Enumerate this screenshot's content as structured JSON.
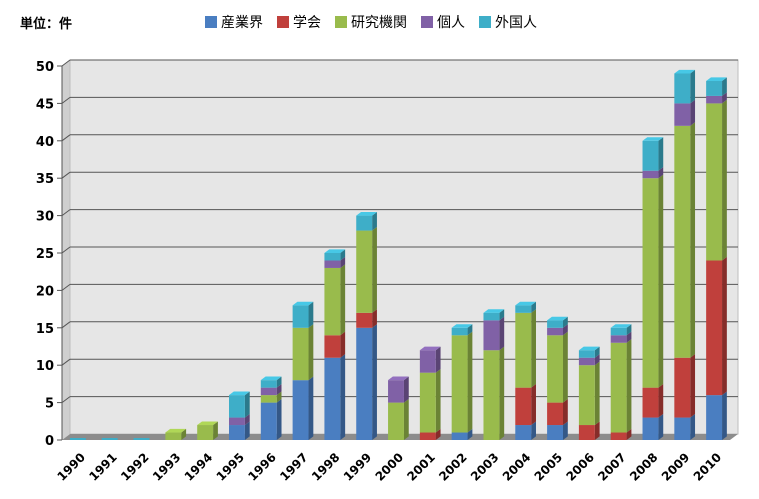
{
  "chart_data": {
    "type": "bar",
    "stacked": true,
    "unit_label": "単位：件",
    "categories": [
      "1990",
      "1991",
      "1992",
      "1993",
      "1994",
      "1995",
      "1996",
      "1997",
      "1998",
      "1999",
      "2000",
      "2001",
      "2002",
      "2003",
      "2004",
      "2005",
      "2006",
      "2007",
      "2008",
      "2009",
      "2010"
    ],
    "series": [
      {
        "name": "産業界",
        "color": "#4a7ec1",
        "values": [
          0,
          0,
          0,
          0,
          0,
          2,
          5,
          8,
          11,
          15,
          0,
          0,
          1,
          0,
          2,
          2,
          0,
          0,
          3,
          3,
          6
        ]
      },
      {
        "name": "学会",
        "color": "#c0403c",
        "values": [
          0,
          0,
          0,
          0,
          0,
          0,
          0,
          0,
          3,
          2,
          0,
          1,
          0,
          0,
          5,
          3,
          2,
          1,
          4,
          8,
          18
        ]
      },
      {
        "name": "研究機関",
        "color": "#99bb4c",
        "values": [
          0,
          0,
          0,
          1,
          2,
          0,
          1,
          7,
          9,
          11,
          5,
          8,
          13,
          12,
          10,
          9,
          8,
          12,
          28,
          31,
          21
        ]
      },
      {
        "name": "個人",
        "color": "#8061a6",
        "values": [
          0,
          0,
          0,
          0,
          0,
          1,
          1,
          0,
          1,
          0,
          3,
          3,
          0,
          4,
          0,
          1,
          1,
          1,
          1,
          3,
          1
        ]
      },
      {
        "name": "外国人",
        "color": "#3eaec8",
        "values": [
          0,
          0,
          0,
          0,
          0,
          3,
          1,
          3,
          1,
          2,
          0,
          0,
          1,
          1,
          1,
          1,
          1,
          1,
          4,
          4,
          2
        ]
      }
    ],
    "ylim": [
      0,
      50
    ],
    "yticks": [
      0,
      5,
      10,
      15,
      20,
      25,
      30,
      35,
      40,
      45,
      50
    ],
    "grid": true,
    "legend_position": "top"
  }
}
